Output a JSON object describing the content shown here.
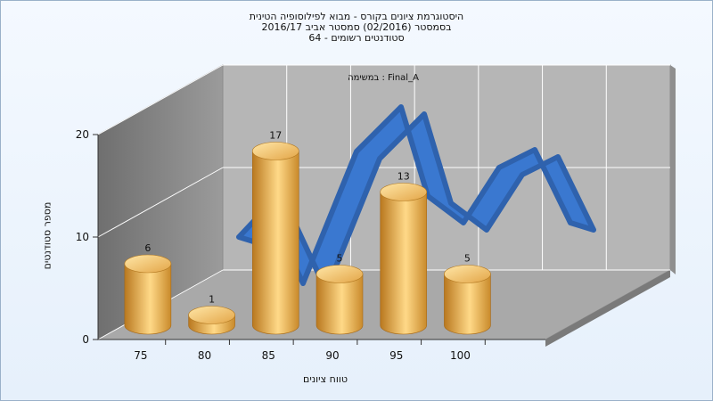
{
  "chart_data": {
    "type": "bar",
    "title_lines": [
      "היסטוגרמת ציונים בקורס - מבוא לפילוסופיה הטינית",
      "בסמסטר  (02/2016)  סמסטר אביב 2016/17",
      "סטודנטים רשומים - 64"
    ],
    "subtitle": "במשימה : Final_A",
    "xlabel": "טווח ציונים",
    "ylabel": "מספר סטודנטים",
    "categories": [
      "75",
      "80",
      "85",
      "90",
      "95",
      "100"
    ],
    "series": [
      {
        "values": [
          6,
          1,
          17,
          5,
          13,
          5
        ]
      }
    ],
    "ylim": [
      0,
      20
    ],
    "yticks": [
      0,
      10,
      20
    ],
    "grid": true,
    "style": "3d-cylinder",
    "colors": {
      "bar_light": "#ffd988",
      "bar_dark": "#b9781f",
      "ribbon": "#3a78d0",
      "back_wall": "#b6b6b6",
      "side_wall": "#8a8a8a",
      "floor": "#a9a9a9"
    }
  }
}
